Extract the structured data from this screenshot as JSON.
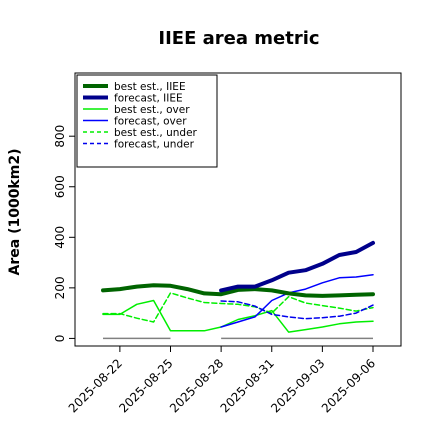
{
  "chart_data": {
    "type": "line",
    "title": "IIEE area metric",
    "xlabel": "",
    "ylabel": "Area (1000km2)",
    "ylim": [
      -30,
      1050
    ],
    "yticks": [
      0,
      200,
      400,
      600,
      800
    ],
    "x": [
      "2025-08-21",
      "2025-08-22",
      "2025-08-23",
      "2025-08-24",
      "2025-08-25",
      "2025-08-26",
      "2025-08-27",
      "2025-08-28",
      "2025-08-29",
      "2025-08-30",
      "2025-08-31",
      "2025-09-01",
      "2025-09-02",
      "2025-09-03",
      "2025-09-04",
      "2025-09-05",
      "2025-09-06"
    ],
    "xticks": [
      "2025-08-22",
      "2025-08-25",
      "2025-08-28",
      "2025-08-31",
      "2025-09-03",
      "2025-09-06"
    ],
    "highlight_tick": "2025-08-28",
    "highlight_color": "#228b22",
    "legend": {
      "position": "top-left",
      "frame": true
    },
    "grid": false,
    "series": [
      {
        "name": "best est., IIEE",
        "color": "#006400",
        "width": 4,
        "dash": "solid",
        "values": [
          190,
          195,
          205,
          210,
          208,
          195,
          178,
          175,
          192,
          195,
          190,
          178,
          170,
          168,
          170,
          173,
          175
        ]
      },
      {
        "name": "forecast, IIEE",
        "color": "#00008b",
        "width": 4,
        "dash": "solid",
        "values": [
          null,
          null,
          null,
          null,
          null,
          null,
          null,
          190,
          205,
          205,
          230,
          260,
          270,
          295,
          330,
          342,
          378
        ]
      },
      {
        "name": "best est., over",
        "color": "#00ee00",
        "width": 1.5,
        "dash": "solid",
        "values": [
          95,
          95,
          135,
          150,
          30,
          30,
          30,
          45,
          75,
          90,
          110,
          25,
          35,
          45,
          58,
          65,
          68
        ]
      },
      {
        "name": "forecast, over",
        "color": "#0000ff",
        "width": 1.5,
        "dash": "solid",
        "values": [
          null,
          null,
          null,
          null,
          null,
          null,
          null,
          45,
          65,
          85,
          150,
          180,
          195,
          220,
          240,
          243,
          252
        ]
      },
      {
        "name": "best est., under",
        "color": "#00ee00",
        "width": 1.5,
        "dash": "dashed",
        "values": [
          98,
          98,
          80,
          65,
          180,
          160,
          142,
          138,
          135,
          125,
          100,
          165,
          140,
          130,
          120,
          108,
          122
        ]
      },
      {
        "name": "forecast, under",
        "color": "#0000ee",
        "width": 1.5,
        "dash": "dashed",
        "values": [
          null,
          null,
          null,
          null,
          null,
          null,
          null,
          148,
          145,
          128,
          95,
          85,
          78,
          82,
          88,
          100,
          132
        ]
      }
    ],
    "reference_segments": [
      {
        "from": "2025-08-21",
        "to": "2025-08-25",
        "value": 0,
        "color": "#808080"
      },
      {
        "from": "2025-08-28",
        "to": "2025-09-06",
        "value": 0,
        "color": "#808080"
      }
    ]
  }
}
